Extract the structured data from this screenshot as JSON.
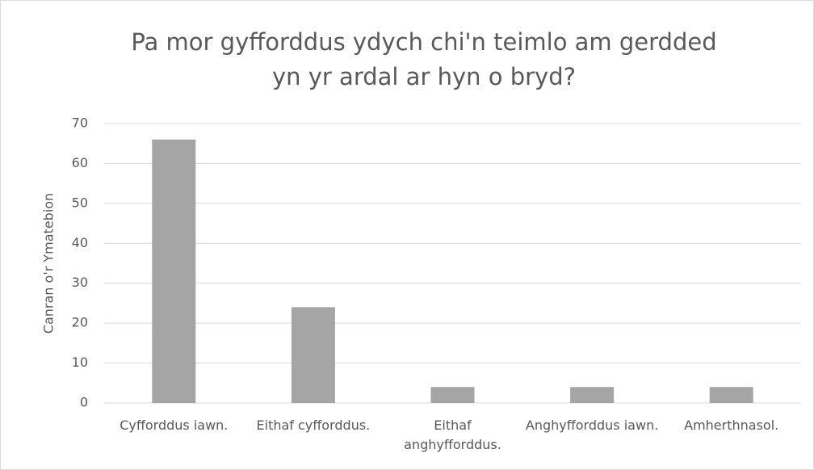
{
  "chart_data": {
    "type": "bar",
    "title": "Pa mor gyfforddus ydych chi'n teimlo am gerdded yn yr ardal ar hyn o bryd?",
    "y_axis_label": "Canran o'r Ymatebion",
    "categories": [
      "Cyfforddus iawn.",
      "Eithaf cyfforddus.",
      "Eithaf anghyfforddus.",
      "Anghyfforddus iawn.",
      "Amherthnasol."
    ],
    "values": [
      66,
      24,
      4,
      4,
      4
    ],
    "color": "#a5a5a5",
    "ylim": [
      0,
      70
    ],
    "yticks": [
      0,
      10,
      20,
      30,
      40,
      50,
      60,
      70
    ],
    "grid": true
  }
}
